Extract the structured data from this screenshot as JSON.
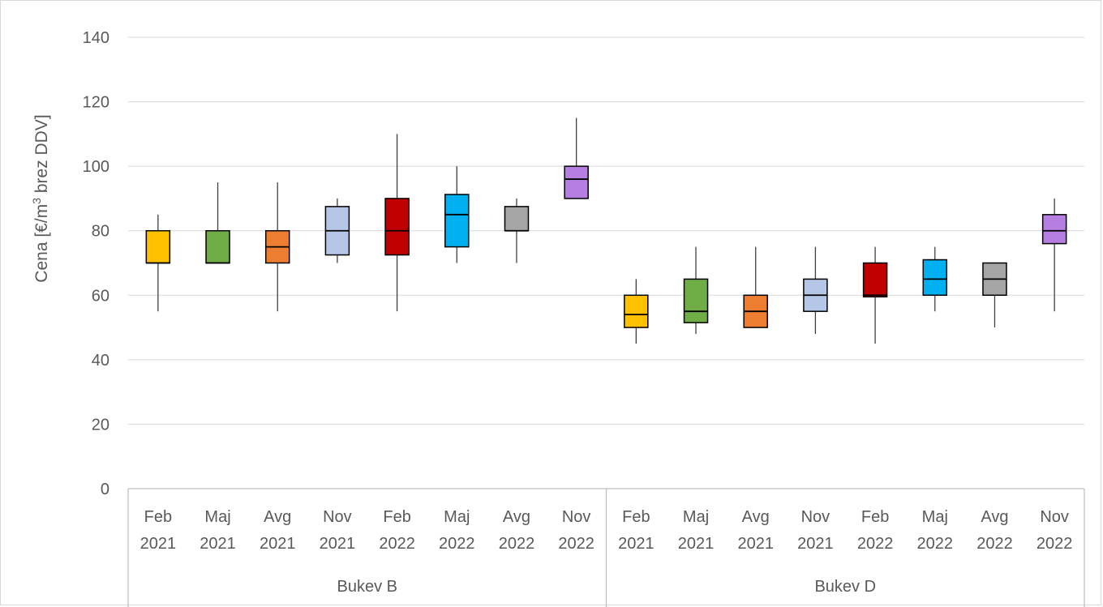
{
  "chart_data": {
    "type": "box",
    "ylabel_prefix": "Cena [€/m",
    "ylabel_sup": "3",
    "ylabel_suffix": " brez DDV]",
    "ylim": [
      0,
      140
    ],
    "yticks": [
      "0",
      "20",
      "40",
      "60",
      "80",
      "100",
      "120",
      "140"
    ],
    "grid": true,
    "groups": [
      {
        "label": "Bukev B",
        "boxes": [
          {
            "period": "Feb",
            "year": "2021",
            "color": "#ffc000",
            "min": 55,
            "q1": 70,
            "median": 70,
            "q3": 80,
            "max": 85
          },
          {
            "period": "Maj",
            "year": "2021",
            "color": "#70ad47",
            "min": 70,
            "q1": 70,
            "median": 70,
            "q3": 80,
            "max": 95
          },
          {
            "period": "Avg",
            "year": "2021",
            "color": "#ed7d31",
            "min": 55,
            "q1": 70,
            "median": 75,
            "q3": 80,
            "max": 95
          },
          {
            "period": "Nov",
            "year": "2021",
            "color": "#b4c7e7",
            "min": 70,
            "q1": 72.5,
            "median": 80,
            "q3": 87.5,
            "max": 90
          },
          {
            "period": "Feb",
            "year": "2022",
            "color": "#c00000",
            "min": 55,
            "q1": 72.5,
            "median": 80,
            "q3": 90,
            "max": 110
          },
          {
            "period": "Maj",
            "year": "2022",
            "color": "#00b0f0",
            "min": 70,
            "q1": 75,
            "median": 85,
            "q3": 91.25,
            "max": 100
          },
          {
            "period": "Avg",
            "year": "2022",
            "color": "#a5a5a5",
            "min": 70,
            "q1": 80,
            "median": 80,
            "q3": 87.5,
            "max": 90
          },
          {
            "period": "Nov",
            "year": "2022",
            "color": "#b57ee0",
            "min": 90,
            "q1": 90,
            "median": 96,
            "q3": 100,
            "max": 115
          }
        ]
      },
      {
        "label": "Bukev D",
        "boxes": [
          {
            "period": "Feb",
            "year": "2021",
            "color": "#ffc000",
            "min": 45,
            "q1": 50,
            "median": 54,
            "q3": 60,
            "max": 65
          },
          {
            "period": "Maj",
            "year": "2021",
            "color": "#70ad47",
            "min": 48,
            "q1": 51.5,
            "median": 55,
            "q3": 65,
            "max": 75
          },
          {
            "period": "Avg",
            "year": "2021",
            "color": "#ed7d31",
            "min": 50,
            "q1": 50,
            "median": 55,
            "q3": 60,
            "max": 75
          },
          {
            "period": "Nov",
            "year": "2021",
            "color": "#b4c7e7",
            "min": 48,
            "q1": 55,
            "median": 60,
            "q3": 65,
            "max": 75
          },
          {
            "period": "Feb",
            "year": "2022",
            "color": "#c00000",
            "min": 45,
            "q1": 59.5,
            "median": 60,
            "q3": 70,
            "max": 75
          },
          {
            "period": "Maj",
            "year": "2022",
            "color": "#00b0f0",
            "min": 55,
            "q1": 60,
            "median": 65,
            "q3": 71,
            "max": 75
          },
          {
            "period": "Avg",
            "year": "2022",
            "color": "#a5a5a5",
            "min": 50,
            "q1": 60,
            "median": 65,
            "q3": 70,
            "max": 70
          },
          {
            "period": "Nov",
            "year": "2022",
            "color": "#b57ee0",
            "min": 55,
            "q1": 76,
            "median": 80,
            "q3": 85,
            "max": 90
          }
        ]
      }
    ]
  }
}
